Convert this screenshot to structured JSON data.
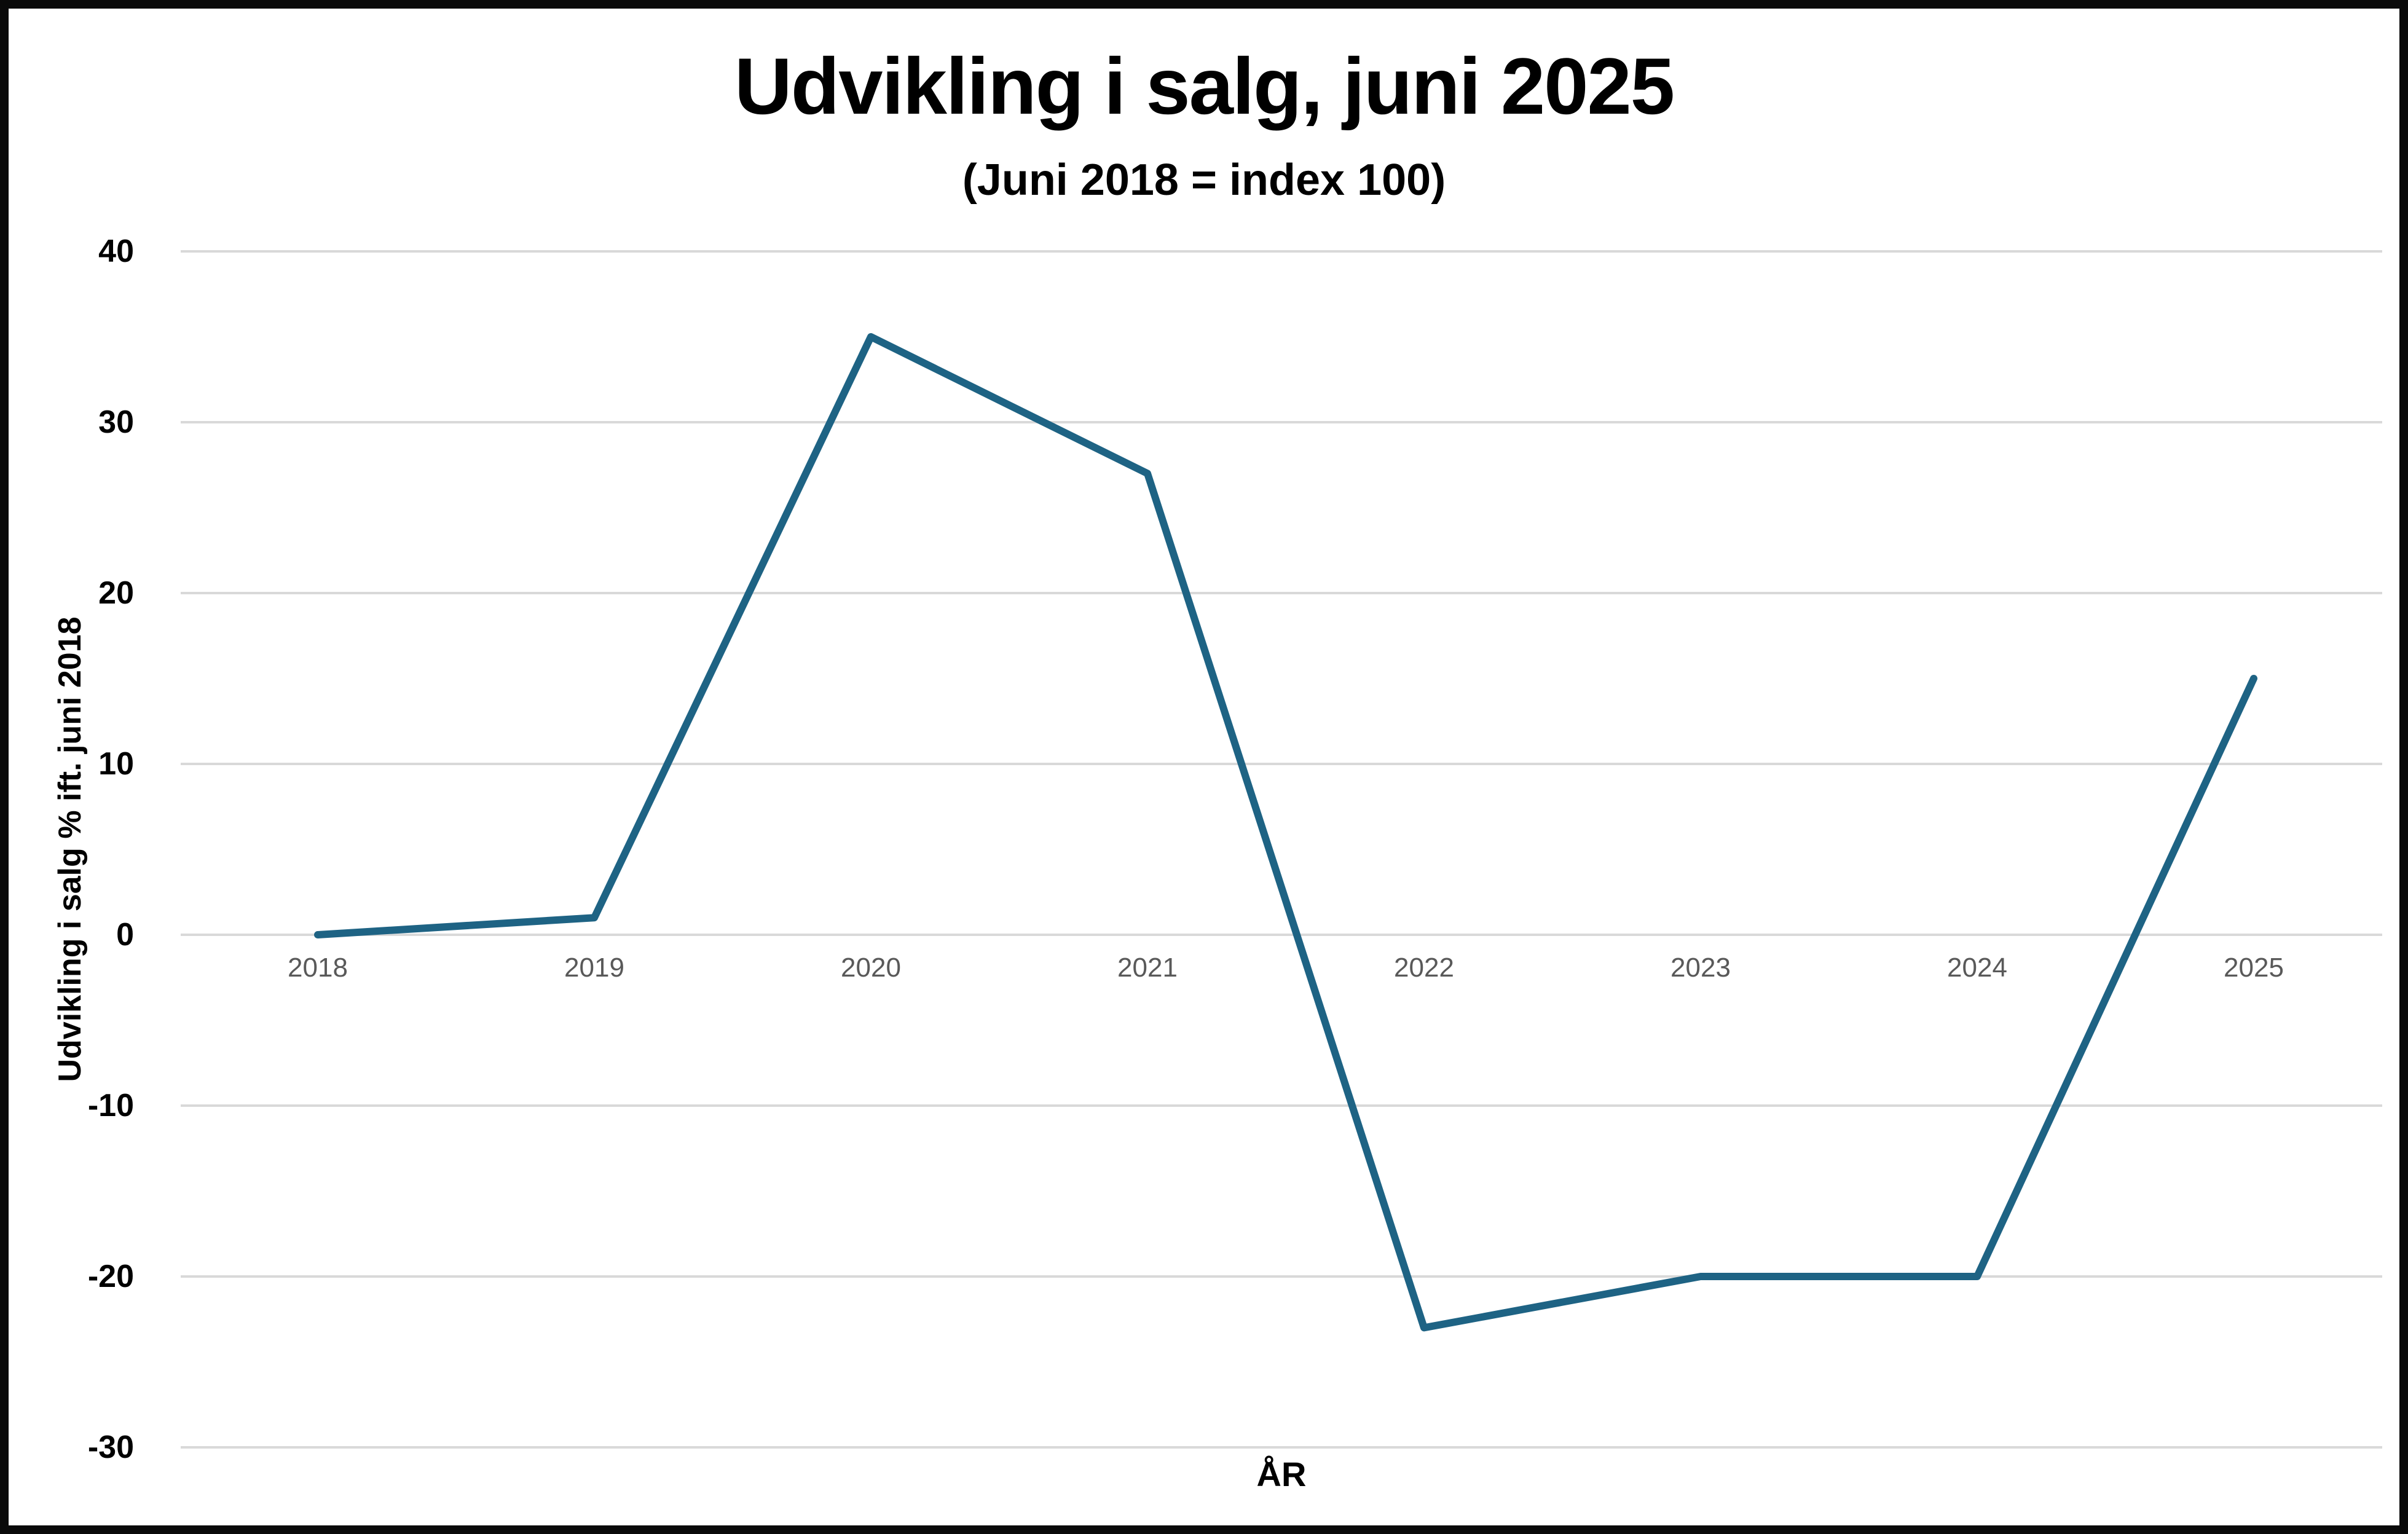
{
  "header": {
    "title": "Udvikling i salg, juni 2025",
    "subtitle": "(Juni 2018 = index 100)"
  },
  "chart_data": {
    "type": "line",
    "title": "Udvikling i salg, juni 2025",
    "subtitle": "(Juni 2018 = index 100)",
    "categories": [
      "2018",
      "2019",
      "2020",
      "2021",
      "2022",
      "2023",
      "2024",
      "2025"
    ],
    "series": [
      {
        "name": "Udvikling i salg",
        "values": [
          0,
          1,
          35,
          27,
          -23,
          -20,
          -20,
          15
        ]
      }
    ],
    "xlabel": "ÅR",
    "ylabel": "Udvikling i salg % ift. juni 2018",
    "ylim": [
      -30,
      40
    ],
    "ytick_step": 10,
    "yticks": [
      40,
      30,
      20,
      10,
      0,
      -10,
      -20,
      -30
    ],
    "grid": "horizontal",
    "legend": "none",
    "line_color": "#1E6384",
    "gridline_color": "#D9D9D9",
    "xtick_color": "#595959",
    "ytick_color": "#000000",
    "background_color": "#FFFFFF",
    "border_color": "#0A0A0A"
  }
}
